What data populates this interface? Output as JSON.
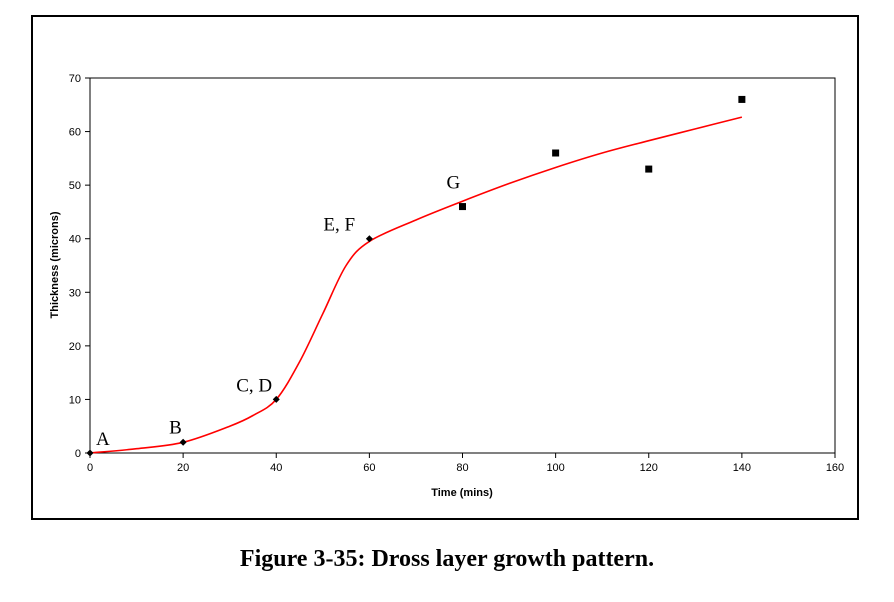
{
  "caption": "Figure 3-35: Dross layer growth pattern.",
  "chart_data": {
    "type": "scatter",
    "xlabel": "Time (mins)",
    "ylabel": "Thickness (microns)",
    "xlim": [
      0,
      160
    ],
    "ylim": [
      0,
      70
    ],
    "xticks": [
      "0",
      "20",
      "40",
      "60",
      "80",
      "100",
      "120",
      "140",
      "160"
    ],
    "yticks": [
      "0",
      "10",
      "20",
      "30",
      "40",
      "50",
      "60",
      "70"
    ],
    "grid": false,
    "legend": "none",
    "colors": {
      "fit_line": "#ff0000",
      "markers": "#000000",
      "frame": "#000000"
    },
    "series": [
      {
        "marker": "diamond",
        "x": [
          0,
          20,
          40,
          60
        ],
        "y": [
          0,
          2,
          10,
          40
        ]
      },
      {
        "marker": "square",
        "x": [
          80,
          100,
          120,
          140
        ],
        "y": [
          46,
          56,
          53,
          66
        ]
      },
      {
        "line": "smooth",
        "x": [
          0,
          10,
          20,
          30,
          35,
          40,
          45,
          50,
          55,
          60,
          70,
          80,
          90,
          100,
          110,
          120,
          130,
          140
        ],
        "y": [
          0,
          0.8,
          2,
          5,
          7,
          10,
          17,
          26,
          35,
          39.5,
          43.5,
          47,
          50.3,
          53.3,
          56,
          58.3,
          60.5,
          62.7
        ]
      }
    ],
    "annotations": [
      {
        "text": "A",
        "x": 0,
        "y": 0
      },
      {
        "text": "B",
        "x": 20,
        "y": 2
      },
      {
        "text": "C, D",
        "x": 40,
        "y": 10
      },
      {
        "text": "E, F",
        "x": 60,
        "y": 40
      },
      {
        "text": "G",
        "x": 80,
        "y": 46
      }
    ]
  }
}
